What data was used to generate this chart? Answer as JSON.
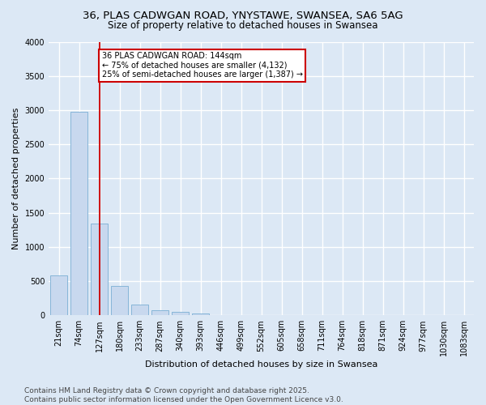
{
  "title": "36, PLAS CADWGAN ROAD, YNYSTAWE, SWANSEA, SA6 5AG",
  "subtitle": "Size of property relative to detached houses in Swansea",
  "xlabel": "Distribution of detached houses by size in Swansea",
  "ylabel": "Number of detached properties",
  "bar_color": "#c8d8ee",
  "bar_edge_color": "#7aaed4",
  "categories": [
    "21sqm",
    "74sqm",
    "127sqm",
    "180sqm",
    "233sqm",
    "287sqm",
    "340sqm",
    "393sqm",
    "446sqm",
    "499sqm",
    "552sqm",
    "605sqm",
    "658sqm",
    "711sqm",
    "764sqm",
    "818sqm",
    "871sqm",
    "924sqm",
    "977sqm",
    "1030sqm",
    "1083sqm"
  ],
  "values": [
    590,
    2980,
    1340,
    430,
    160,
    80,
    50,
    30,
    5,
    0,
    0,
    0,
    0,
    0,
    0,
    0,
    0,
    0,
    0,
    0,
    0
  ],
  "ylim": [
    0,
    4000
  ],
  "yticks": [
    0,
    500,
    1000,
    1500,
    2000,
    2500,
    3000,
    3500,
    4000
  ],
  "property_line_x": 2,
  "annotation_text": "36 PLAS CADWGAN ROAD: 144sqm\n← 75% of detached houses are smaller (4,132)\n25% of semi-detached houses are larger (1,387) →",
  "annotation_box_color": "#ffffff",
  "annotation_box_edge": "#cc0000",
  "vline_color": "#cc0000",
  "footer_line1": "Contains HM Land Registry data © Crown copyright and database right 2025.",
  "footer_line2": "Contains public sector information licensed under the Open Government Licence v3.0.",
  "background_color": "#dce8f5",
  "plot_bg_color": "#dce8f5",
  "grid_color": "#ffffff",
  "title_fontsize": 9.5,
  "subtitle_fontsize": 8.5,
  "xlabel_fontsize": 8,
  "ylabel_fontsize": 8,
  "tick_fontsize": 7,
  "footer_fontsize": 6.5,
  "annot_fontsize": 7
}
